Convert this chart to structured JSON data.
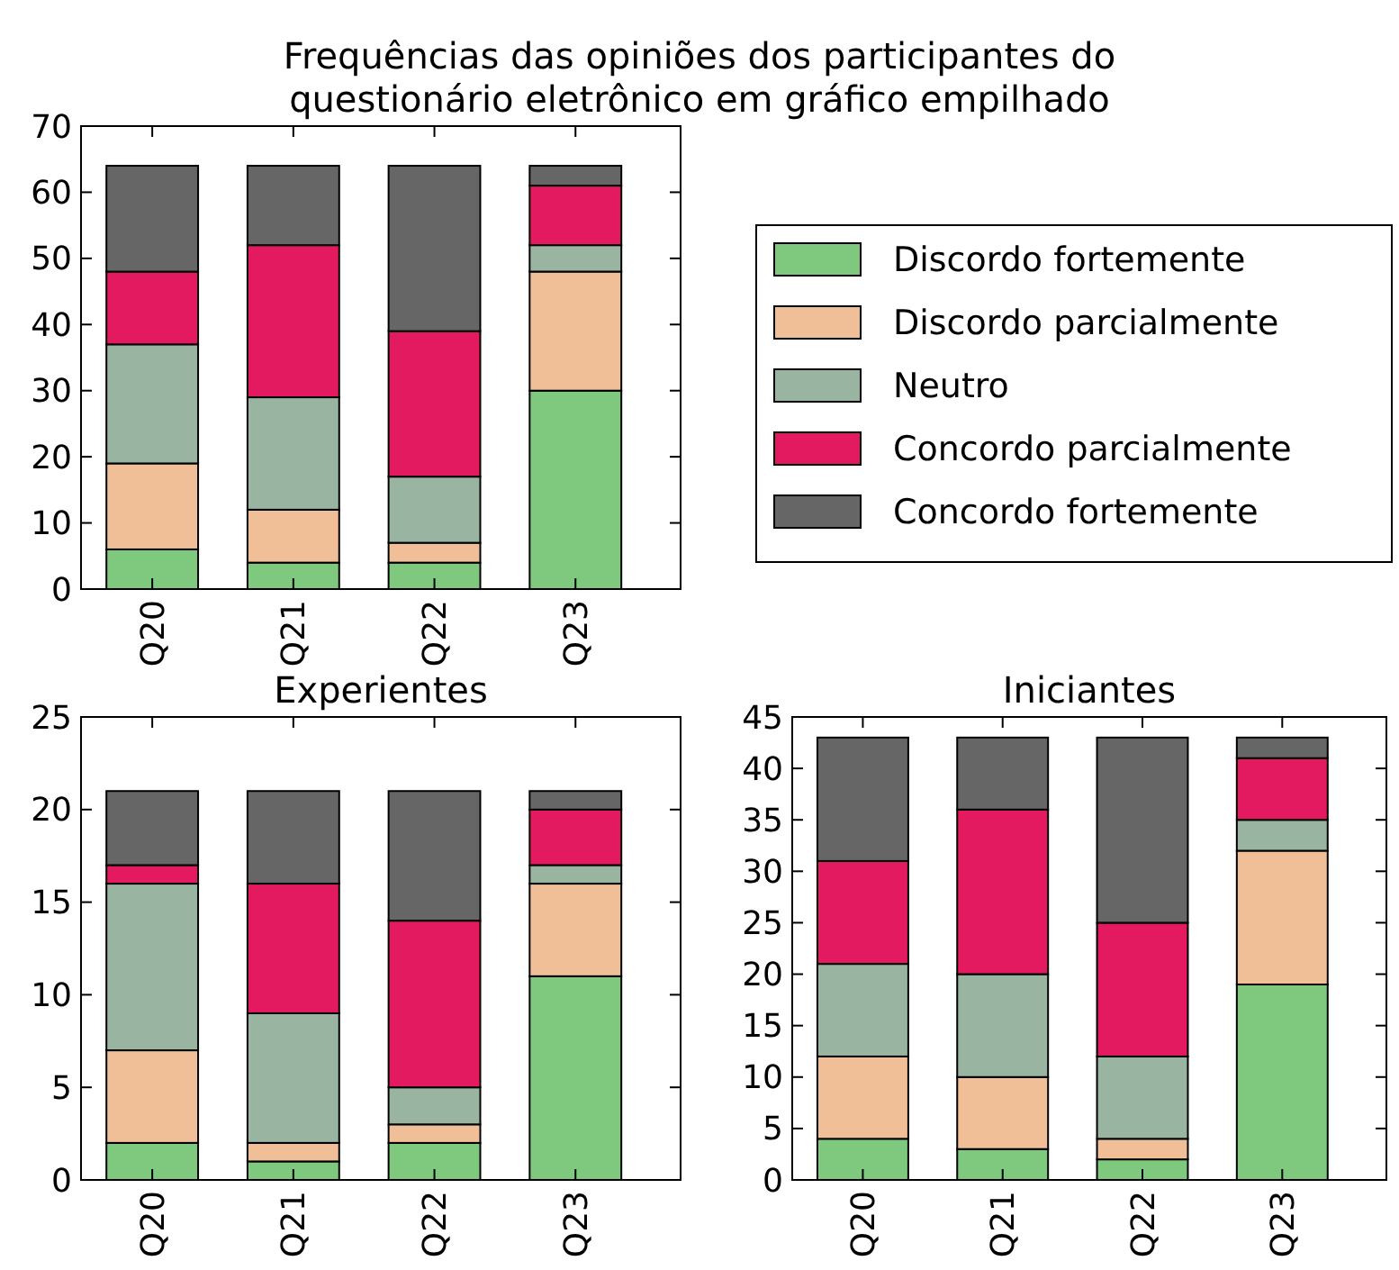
{
  "chart_data": [
    {
      "type": "bar",
      "title": "Frequências das opiniões dos participantes do\nquestionário eletrônico em gráfico empilhado",
      "stacked": true,
      "categories": [
        "Q20",
        "Q21",
        "Q22",
        "Q23"
      ],
      "ylim": [
        0,
        70
      ],
      "yticks": [
        0,
        10,
        20,
        30,
        40,
        50,
        60,
        70
      ],
      "legend": "right",
      "grid": false,
      "series": [
        {
          "name": "Discordo fortemente",
          "color": "#7fc97f",
          "values": [
            6,
            4,
            4,
            30
          ]
        },
        {
          "name": "Discordo parcialmente",
          "color": "#f0bf98",
          "values": [
            13,
            8,
            3,
            18
          ]
        },
        {
          "name": "Neutro",
          "color": "#99b4a0",
          "values": [
            18,
            17,
            10,
            4
          ]
        },
        {
          "name": "Concordo parcialmente",
          "color": "#e31a5f",
          "values": [
            11,
            23,
            22,
            9
          ]
        },
        {
          "name": "Concordo fortemente",
          "color": "#666666",
          "values": [
            16,
            12,
            25,
            3
          ]
        }
      ]
    },
    {
      "type": "bar",
      "title": "Experientes",
      "stacked": true,
      "categories": [
        "Q20",
        "Q21",
        "Q22",
        "Q23"
      ],
      "ylim": [
        0,
        25
      ],
      "yticks": [
        0,
        5,
        10,
        15,
        20,
        25
      ],
      "grid": false,
      "series": [
        {
          "color": "#7fc97f",
          "values": [
            2,
            1,
            2,
            11
          ]
        },
        {
          "color": "#f0bf98",
          "values": [
            5,
            1,
            1,
            5
          ]
        },
        {
          "color": "#99b4a0",
          "values": [
            9,
            7,
            2,
            1
          ]
        },
        {
          "color": "#e31a5f",
          "values": [
            1,
            7,
            9,
            3
          ]
        },
        {
          "color": "#666666",
          "values": [
            4,
            5,
            7,
            1
          ]
        }
      ]
    },
    {
      "type": "bar",
      "title": "Iniciantes",
      "stacked": true,
      "categories": [
        "Q20",
        "Q21",
        "Q22",
        "Q23"
      ],
      "ylim": [
        0,
        45
      ],
      "yticks": [
        0,
        5,
        10,
        15,
        20,
        25,
        30,
        35,
        40,
        45
      ],
      "grid": false,
      "series": [
        {
          "color": "#7fc97f",
          "values": [
            4,
            3,
            2,
            19
          ]
        },
        {
          "color": "#f0bf98",
          "values": [
            8,
            7,
            2,
            13
          ]
        },
        {
          "color": "#99b4a0",
          "values": [
            9,
            10,
            8,
            3
          ]
        },
        {
          "color": "#e31a5f",
          "values": [
            10,
            16,
            13,
            6
          ]
        },
        {
          "color": "#666666",
          "values": [
            12,
            7,
            18,
            2
          ]
        }
      ]
    }
  ]
}
